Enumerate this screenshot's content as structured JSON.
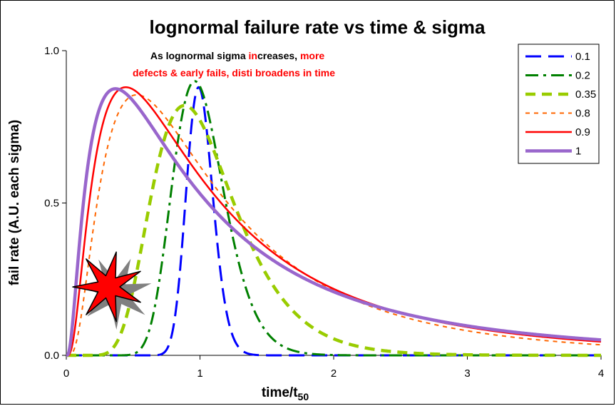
{
  "chart_data": {
    "type": "line",
    "title": "lognormal failure rate vs time & sigma",
    "xlabel": "time/t",
    "xlabel_subscript": "50",
    "ylabel": "fail rate (A.U. each sigma)",
    "xlim": [
      0,
      4
    ],
    "ylim": [
      0,
      1
    ],
    "x_ticks": [
      "0",
      "1",
      "2",
      "3",
      "4"
    ],
    "y_ticks": [
      "0.0",
      "0.5",
      "1.0"
    ],
    "grid": false,
    "legend_position": "top-right",
    "annotation": {
      "line1_parts": [
        {
          "text": "As lognormal sigma ",
          "color": "#000000"
        },
        {
          "text": "in",
          "color": "#ff0000"
        },
        {
          "text": "creases, ",
          "color": "#000000"
        },
        {
          "text": "more",
          "color": "#ff0000"
        }
      ],
      "line2": "defects & early fails, disti broadens in time",
      "line2_color": "#ff0000"
    },
    "series": [
      {
        "name": "0.1",
        "sigma": 0.1,
        "peak": 0.88,
        "color": "#0000ff",
        "dash": "22,10",
        "width": 3
      },
      {
        "name": "0.2",
        "sigma": 0.2,
        "peak": 0.9,
        "color": "#008000",
        "dash": "18,7,4,7",
        "width": 3
      },
      {
        "name": "0.35",
        "sigma": 0.35,
        "peak": 0.82,
        "color": "#99cc00",
        "dash": "14,9",
        "width": 4.5
      },
      {
        "name": "0.8",
        "sigma": 0.8,
        "peak": 0.855,
        "color": "#ff6600",
        "dash": "6,6",
        "width": 2
      },
      {
        "name": "0.9",
        "sigma": 0.9,
        "peak": 0.88,
        "color": "#ff0000",
        "dash": "",
        "width": 2.5
      },
      {
        "name": "1",
        "sigma": 1.0,
        "peak": 0.875,
        "color": "#9966cc",
        "dash": "",
        "width": 4.5
      }
    ]
  },
  "icon": {
    "name": "star-burst-icon",
    "fill": "#ff0000",
    "shadow": "#808080"
  }
}
